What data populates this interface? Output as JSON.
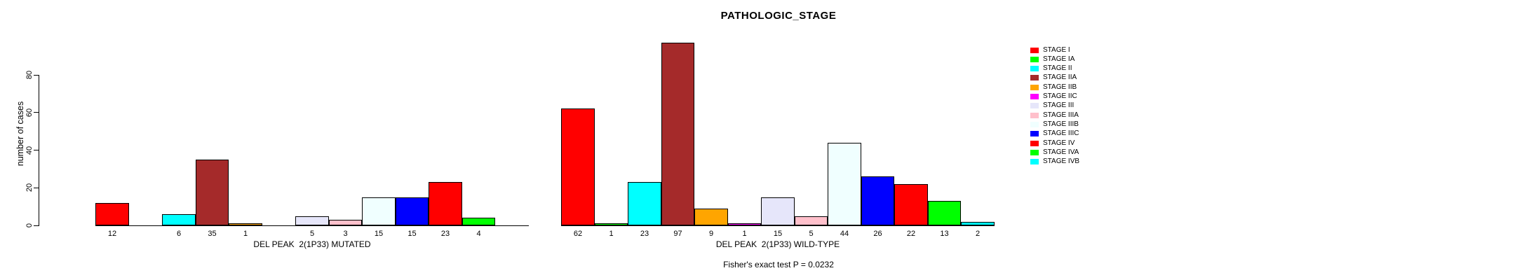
{
  "title": "PATHOLOGIC_STAGE",
  "chart_data": {
    "type": "bar",
    "title": "PATHOLOGIC_STAGE",
    "xlabel": "",
    "ylabel": "number of cases",
    "ylim": [
      0,
      80
    ],
    "yticks": [
      0,
      20,
      40,
      60,
      80
    ],
    "grid": false,
    "legend_position": "right",
    "bar_outline_color": "#000000",
    "categories": [
      "STAGE I",
      "STAGE IA",
      "STAGE II",
      "STAGE IIA",
      "STAGE IIB",
      "STAGE IIC",
      "STAGE III",
      "STAGE IIIA",
      "STAGE IIIB",
      "STAGE IIIC",
      "STAGE IV",
      "STAGE IVA",
      "STAGE IVB"
    ],
    "category_colors": [
      "#FF0000",
      "#00FF00",
      "#00FFFF",
      "#A52A2A",
      "#FFA500",
      "#FF00FF",
      "#E6E6FA",
      "#FFC0CB",
      "#F0FFFF",
      "#0000FF",
      "#FF0000",
      "#00FF00",
      "#00FFFF"
    ],
    "groups": [
      {
        "label": "DEL PEAK  2(1P33) MUTATED",
        "values": [
          12,
          0,
          6,
          35,
          1,
          0,
          5,
          3,
          15,
          15,
          23,
          4,
          0
        ]
      },
      {
        "label": "DEL PEAK  2(1P33) WILD-TYPE",
        "values": [
          62,
          1,
          23,
          97,
          9,
          1,
          15,
          5,
          44,
          26,
          22,
          13,
          2
        ]
      }
    ],
    "bar_value_labels_shown_for_nonzero_only": true,
    "annotation": "Fisher's exact test P = 0.0232"
  }
}
